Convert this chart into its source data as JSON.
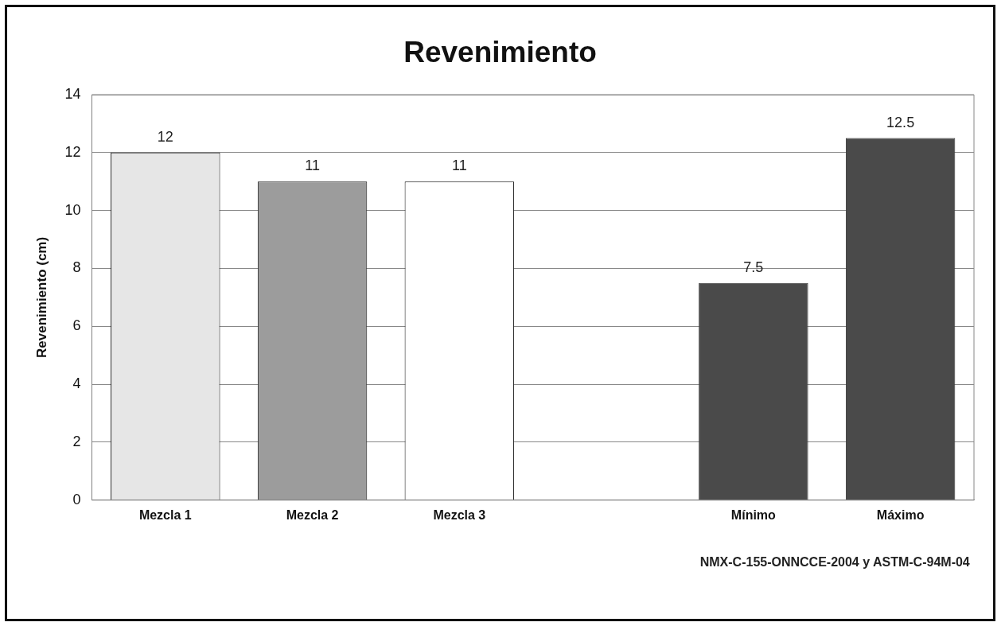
{
  "chart_data": {
    "type": "bar",
    "title": "Revenimiento",
    "ylabel": "Revenimiento (cm)",
    "categories": [
      "Mezcla 1",
      "Mezcla 2",
      "Mezcla 3",
      null,
      "Mínimo",
      "Máximo"
    ],
    "values": [
      12,
      11,
      11,
      null,
      7.5,
      12.5
    ],
    "colors": [
      "#e6e6e6",
      "#9c9c9c",
      "#ffffff",
      "#ffffff",
      "#4a4a4a",
      "#4a4a4a"
    ],
    "ylim": [
      0,
      14
    ],
    "yticks": [
      0,
      2,
      4,
      6,
      8,
      10,
      12,
      14
    ],
    "grid": "y",
    "data_labels": true,
    "legend": false,
    "annotations": [
      "NMX-C-155-ONNCCE-2004 y ASTM-C-94M-04"
    ]
  }
}
